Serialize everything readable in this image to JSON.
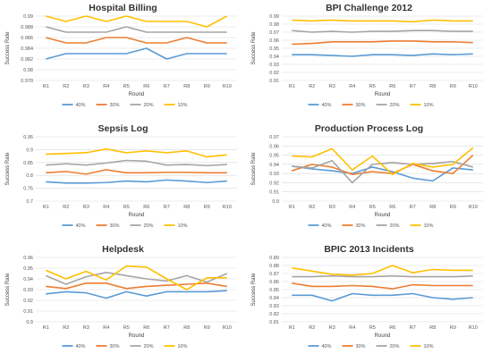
{
  "colors": {
    "40%": "#5b9bd5",
    "30%": "#ed7d31",
    "20%": "#a5a5a5",
    "10%": "#ffc000"
  },
  "chart_data": [
    {
      "type": "line",
      "title": "Hospital Billing",
      "xlabel": "Round",
      "ylabel": "Success Rate",
      "categories": [
        "R1",
        "R2",
        "R3",
        "R4",
        "R5",
        "R6",
        "R7",
        "R8",
        "R9",
        "R10"
      ],
      "ylim": [
        0.978,
        0.99
      ],
      "yticks": [
        0.978,
        0.98,
        0.982,
        0.984,
        0.986,
        0.988,
        0.99
      ],
      "ytick_labels": [
        "0.978",
        "0.98",
        "0.982",
        "0.984",
        "0.986",
        "0.988",
        "0.99"
      ],
      "grid": true,
      "legend": "bottom",
      "series": [
        {
          "name": "40%",
          "values": [
            0.982,
            0.983,
            0.983,
            0.983,
            0.983,
            0.984,
            0.982,
            0.983,
            0.983,
            0.983
          ]
        },
        {
          "name": "30%",
          "values": [
            0.986,
            0.985,
            0.985,
            0.986,
            0.986,
            0.985,
            0.985,
            0.986,
            0.985,
            0.985
          ]
        },
        {
          "name": "20%",
          "values": [
            0.988,
            0.987,
            0.987,
            0.987,
            0.988,
            0.987,
            0.987,
            0.987,
            0.987,
            0.987
          ]
        },
        {
          "name": "10%",
          "values": [
            0.99,
            0.989,
            0.99,
            0.989,
            0.99,
            0.989,
            0.989,
            0.989,
            0.988,
            0.99
          ]
        }
      ]
    },
    {
      "type": "line",
      "title": "BPI Challenge 2012",
      "xlabel": "Round",
      "ylabel": "Success Rate",
      "categories": [
        "R1",
        "R2",
        "R3",
        "R4",
        "R5",
        "R6",
        "R7",
        "R8",
        "R9",
        "R10"
      ],
      "ylim": [
        0.91,
        0.99
      ],
      "yticks": [
        0.91,
        0.92,
        0.93,
        0.94,
        0.95,
        0.96,
        0.97,
        0.98,
        0.99
      ],
      "ytick_labels": [
        "0.91",
        "0.92",
        "0.93",
        "0.94",
        "0.95",
        "0.96",
        "0.97",
        "0.98",
        "0.99"
      ],
      "grid": true,
      "legend": "bottom",
      "series": [
        {
          "name": "40%",
          "values": [
            0.942,
            0.942,
            0.941,
            0.94,
            0.942,
            0.942,
            0.941,
            0.943,
            0.942,
            0.943
          ]
        },
        {
          "name": "30%",
          "values": [
            0.955,
            0.956,
            0.958,
            0.958,
            0.958,
            0.959,
            0.959,
            0.958,
            0.958,
            0.957
          ]
        },
        {
          "name": "20%",
          "values": [
            0.972,
            0.97,
            0.971,
            0.97,
            0.971,
            0.971,
            0.972,
            0.972,
            0.971,
            0.971
          ]
        },
        {
          "name": "10%",
          "values": [
            0.985,
            0.984,
            0.985,
            0.984,
            0.984,
            0.984,
            0.983,
            0.985,
            0.984,
            0.984
          ]
        }
      ]
    },
    {
      "type": "line",
      "title": "Sepsis Log",
      "xlabel": "Round",
      "ylabel": "Success Rate",
      "categories": [
        "R1",
        "R2",
        "R3",
        "R4",
        "R5",
        "R6",
        "R7",
        "R8",
        "R9",
        "R10"
      ],
      "ylim": [
        0.7,
        0.95
      ],
      "yticks": [
        0.7,
        0.75,
        0.8,
        0.85,
        0.9,
        0.95
      ],
      "ytick_labels": [
        "0.7",
        "0.75",
        "0.8",
        "0.85",
        "0.9",
        "0.95"
      ],
      "grid": true,
      "legend": "bottom",
      "series": [
        {
          "name": "40%",
          "values": [
            0.775,
            0.77,
            0.77,
            0.772,
            0.778,
            0.775,
            0.782,
            0.778,
            0.772,
            0.778
          ]
        },
        {
          "name": "30%",
          "values": [
            0.81,
            0.815,
            0.805,
            0.822,
            0.81,
            0.81,
            0.812,
            0.812,
            0.81,
            0.81
          ]
        },
        {
          "name": "20%",
          "values": [
            0.84,
            0.845,
            0.84,
            0.848,
            0.858,
            0.855,
            0.84,
            0.842,
            0.838,
            0.842
          ]
        },
        {
          "name": "10%",
          "values": [
            0.882,
            0.885,
            0.888,
            0.902,
            0.888,
            0.895,
            0.888,
            0.895,
            0.872,
            0.88
          ]
        }
      ]
    },
    {
      "type": "line",
      "title": "Production Process Log",
      "xlabel": "Round",
      "ylabel": "Success Rate",
      "categories": [
        "R1",
        "R2",
        "R3",
        "R4",
        "R5",
        "R6",
        "R7",
        "R8",
        "R9",
        "R10"
      ],
      "ylim": [
        0.9,
        0.97
      ],
      "yticks": [
        0.9,
        0.91,
        0.92,
        0.93,
        0.94,
        0.95,
        0.96,
        0.97
      ],
      "ytick_labels": [
        "0.9",
        "0.91",
        "0.92",
        "0.93",
        "0.94",
        "0.95",
        "0.96",
        "0.97"
      ],
      "grid": true,
      "legend": "bottom",
      "series": [
        {
          "name": "40%",
          "values": [
            0.938,
            0.935,
            0.933,
            0.93,
            0.937,
            0.932,
            0.925,
            0.922,
            0.936,
            0.934
          ]
        },
        {
          "name": "30%",
          "values": [
            0.933,
            0.94,
            0.937,
            0.929,
            0.932,
            0.93,
            0.94,
            0.933,
            0.93,
            0.95
          ]
        },
        {
          "name": "20%",
          "values": [
            0.938,
            0.936,
            0.944,
            0.92,
            0.94,
            0.942,
            0.94,
            0.941,
            0.943,
            0.937
          ]
        },
        {
          "name": "10%",
          "values": [
            0.949,
            0.948,
            0.957,
            0.934,
            0.949,
            0.929,
            0.941,
            0.937,
            0.94,
            0.958
          ]
        }
      ]
    },
    {
      "type": "line",
      "title": "Helpdesk",
      "xlabel": "Round",
      "ylabel": "Success Rate",
      "categories": [
        "R1",
        "R2",
        "R3",
        "R4",
        "R5",
        "R6",
        "R7",
        "R8",
        "R9",
        "R10"
      ],
      "ylim": [
        0.9,
        0.96
      ],
      "yticks": [
        0.9,
        0.91,
        0.92,
        0.93,
        0.94,
        0.95,
        0.96
      ],
      "ytick_labels": [
        "0.9",
        "0.91",
        "0.92",
        "0.93",
        "0.94",
        "0.95",
        "0.96"
      ],
      "grid": true,
      "legend": "bottom",
      "series": [
        {
          "name": "40%",
          "values": [
            0.926,
            0.928,
            0.927,
            0.922,
            0.928,
            0.924,
            0.928,
            0.928,
            0.928,
            0.929
          ]
        },
        {
          "name": "30%",
          "values": [
            0.933,
            0.931,
            0.936,
            0.936,
            0.931,
            0.933,
            0.934,
            0.935,
            0.936,
            0.933
          ]
        },
        {
          "name": "20%",
          "values": [
            0.943,
            0.935,
            0.942,
            0.946,
            0.943,
            0.94,
            0.938,
            0.943,
            0.937,
            0.945
          ]
        },
        {
          "name": "10%",
          "values": [
            0.948,
            0.94,
            0.947,
            0.939,
            0.952,
            0.951,
            0.94,
            0.93,
            0.941,
            0.941
          ]
        }
      ]
    },
    {
      "type": "line",
      "title": "BPIC 2013 Incidents",
      "xlabel": "Round",
      "ylabel": "Success Rate",
      "categories": [
        "R1",
        "R2",
        "R3",
        "R4",
        "R5",
        "R6",
        "R7",
        "R8",
        "R9",
        "R10"
      ],
      "ylim": [
        0.81,
        0.89
      ],
      "yticks": [
        0.81,
        0.82,
        0.83,
        0.84,
        0.85,
        0.86,
        0.87,
        0.88,
        0.89
      ],
      "ytick_labels": [
        "0.81",
        "0.82",
        "0.83",
        "0.84",
        "0.85",
        "0.86",
        "0.87",
        "0.88",
        "0.89"
      ],
      "grid": true,
      "legend": "bottom",
      "series": [
        {
          "name": "40%",
          "values": [
            0.843,
            0.843,
            0.836,
            0.845,
            0.843,
            0.843,
            0.845,
            0.84,
            0.838,
            0.84
          ]
        },
        {
          "name": "30%",
          "values": [
            0.858,
            0.854,
            0.854,
            0.855,
            0.854,
            0.851,
            0.856,
            0.855,
            0.855,
            0.855
          ]
        },
        {
          "name": "20%",
          "values": [
            0.866,
            0.866,
            0.867,
            0.866,
            0.866,
            0.867,
            0.866,
            0.866,
            0.866,
            0.867
          ]
        },
        {
          "name": "10%",
          "values": [
            0.877,
            0.873,
            0.869,
            0.868,
            0.87,
            0.88,
            0.871,
            0.875,
            0.874,
            0.874
          ]
        }
      ]
    }
  ]
}
